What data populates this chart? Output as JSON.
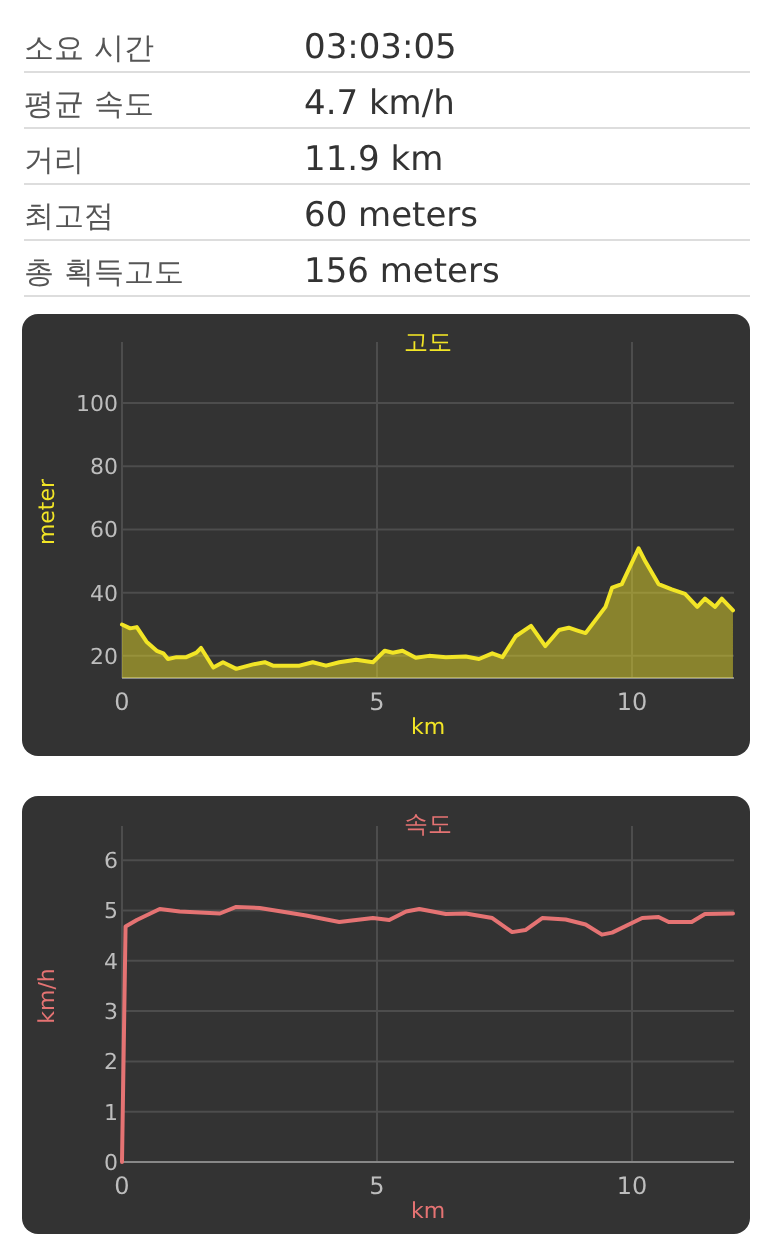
{
  "chart_data": [
    {
      "type": "other",
      "annotations": [
        "소요 시간",
        "03:03:05",
        "평균 속도",
        "4.7 km/h",
        "거리",
        "11.9 km",
        "최고점",
        "60 meters",
        "총 획득고도",
        "156 meters"
      ]
    },
    {
      "type": "area",
      "title": "고도",
      "xlabel": "km",
      "ylabel": "meter",
      "xlim": [
        0,
        12
      ],
      "ylim": [
        13,
        118
      ],
      "xticks": [
        0,
        5,
        10
      ],
      "yticks": [
        20,
        40,
        60,
        80,
        100
      ],
      "grid": true,
      "series": [
        {
          "color": "#f2e526",
          "x": [
            0,
            0.16,
            0.29,
            0.48,
            0.68,
            0.81,
            0.9,
            1.07,
            1.26,
            1.46,
            1.55,
            1.79,
            1.98,
            2.24,
            2.57,
            2.8,
            2.96,
            3.48,
            3.74,
            4.0,
            4.26,
            4.59,
            4.92,
            5.15,
            5.31,
            5.5,
            5.76,
            6.02,
            6.35,
            6.74,
            7.0,
            7.26,
            7.46,
            7.72,
            8.02,
            8.3,
            8.57,
            8.76,
            8.93,
            9.09,
            9.48,
            9.61,
            9.8,
            10.13,
            10.26,
            10.52,
            10.78,
            11.04,
            11.28,
            11.43,
            11.63,
            11.76,
            11.98
          ],
          "values": [
            29.9,
            28.7,
            29.1,
            24.5,
            21.6,
            20.8,
            19,
            19.6,
            19.6,
            21,
            22.5,
            16.3,
            18,
            15.9,
            17.3,
            18,
            16.9,
            16.9,
            18,
            16.9,
            18,
            18.8,
            18,
            21.6,
            21,
            21.6,
            19.4,
            20,
            19.6,
            19.8,
            19,
            20.8,
            19.6,
            26.2,
            29.5,
            23.1,
            28.2,
            28.9,
            28,
            27.2,
            35.5,
            41.6,
            42.7,
            54,
            49.9,
            42.7,
            41,
            39.6,
            35.5,
            38.1,
            35.5,
            38.1,
            34.4
          ]
        }
      ]
    },
    {
      "type": "line",
      "title": "속도",
      "xlabel": "km",
      "ylabel": "km/h",
      "xlim": [
        0,
        12
      ],
      "ylim": [
        0,
        6.6
      ],
      "xticks": [
        0,
        5,
        10
      ],
      "yticks": [
        0,
        1,
        2,
        3,
        4,
        5,
        6
      ],
      "grid": true,
      "series": [
        {
          "color": "#e57373",
          "x": [
            0,
            0.07,
            0.29,
            0.74,
            1.13,
            1.92,
            2.24,
            2.7,
            3.61,
            4.26,
            4.92,
            5.24,
            5.57,
            5.83,
            6.35,
            6.74,
            7.26,
            7.65,
            7.91,
            8.24,
            8.7,
            9.09,
            9.41,
            9.61,
            10.2,
            10.52,
            10.72,
            11.17,
            11.43,
            11.98
          ],
          "values": [
            0,
            4.68,
            4.81,
            5.03,
            4.98,
            4.94,
            5.07,
            5.05,
            4.9,
            4.77,
            4.85,
            4.81,
            4.98,
            5.03,
            4.93,
            4.94,
            4.85,
            4.57,
            4.61,
            4.85,
            4.82,
            4.72,
            4.52,
            4.56,
            4.85,
            4.87,
            4.77,
            4.77,
            4.93,
            4.94
          ]
        }
      ]
    }
  ]
}
